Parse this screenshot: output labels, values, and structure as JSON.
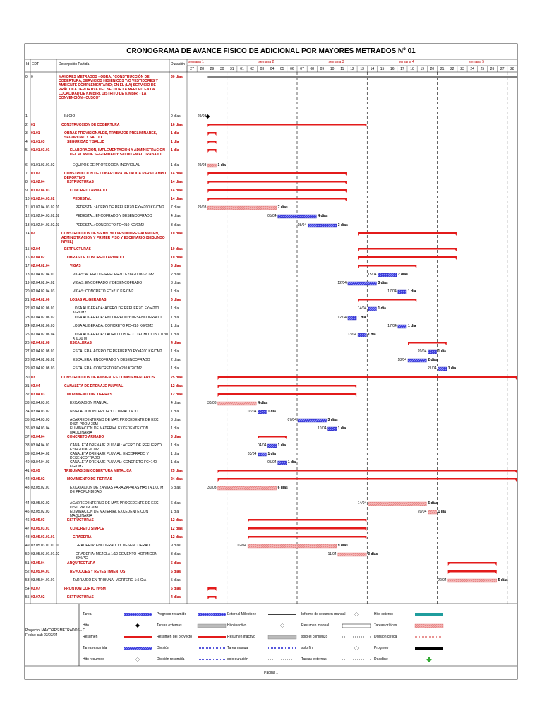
{
  "header": {
    "title": "CRONOGRAMA DE AVANCE FISICO DE ADICIONAL POR MAYORES METRADOS Nº 01",
    "columns": [
      "Id",
      "EDT",
      "Descripción Partida",
      "Duración"
    ]
  },
  "weeks": [
    "semana 1",
    "semana 2",
    "semana 3",
    "semana 4",
    "semana 5"
  ],
  "days": [
    "27",
    "28",
    "29",
    "30",
    "31",
    "01",
    "02",
    "03",
    "04",
    "05",
    "06",
    "07",
    "08",
    "09",
    "10",
    "11",
    "12",
    "13",
    "14",
    "15",
    "16",
    "17",
    "18",
    "19",
    "20",
    "21",
    "22",
    "23",
    "24",
    "25",
    "26",
    "27",
    "28"
  ],
  "rows": [
    {
      "id": 0,
      "edt": "0",
      "name": "MAYORES METRADOS - OBRA: \"CONSTRUCCIÓN DE COBERTURA, SERVICIOS HIGIÉNICOS Y/O VESTIDORES Y AMBIENTE COMPLEMENTARIO; EN EL (LA) SERVICIO DE PRÁCTICA DEPORTIVA DEL SECTOR LA MERCED EN LA LOCALIDAD DE KIMBIRI, DISTRITO DE KIMBIRI - LA CONVENCIÓN - CUSCO\"",
      "duration": "30 días"
    },
    {
      "id": 1,
      "name": "INICIO",
      "duration": "0 días",
      "start_label": "29/03"
    },
    {
      "id": 2,
      "edt": "01",
      "name": "CONSTRUCCION DE COBERTURA",
      "duration": "16 días"
    },
    {
      "id": 3,
      "edt": "01.01",
      "name": "OBRAS PROVISIONALES, TRABAJOS PRELIMINARES, SEGURIDAD Y SALUD",
      "duration": "1 día"
    },
    {
      "id": 4,
      "edt": "01.01.03",
      "name": "SEGURIDAD Y SALUD",
      "duration": "1 día"
    },
    {
      "id": 5,
      "edt": "01.01.03.01",
      "name": "ELABORACION, IMPLEMENTACION Y ADMINISTRACION DEL PLAN DE SEGURIDAD Y SALUD EN EL TRABAJO",
      "duration": "1 día"
    },
    {
      "id": 6,
      "edt": "01.01.03.01.02",
      "name": "EQUIPOS DE PROTECCION INDIVIDUAL",
      "duration": "1 día",
      "start_label": "29/03",
      "end_label": "1 día"
    },
    {
      "id": 7,
      "edt": "01.02",
      "name": "CONSTRUCCION DE COBERTURA METALICA PARA CAMPO DEPORTIVO",
      "duration": "14 días"
    },
    {
      "id": 8,
      "edt": "01.02.04",
      "name": "ESTRUCTURAS",
      "duration": "14 días"
    },
    {
      "id": 9,
      "edt": "01.02.04.03",
      "name": "CONCRETO ARMADO",
      "duration": "14 días"
    },
    {
      "id": 10,
      "edt": "01.02.04.03.02",
      "name": "PEDESTAL",
      "duration": "14 días"
    },
    {
      "id": 11,
      "edt": "01.02.04.03.02.01",
      "name": "PEDESTAL: ACERO DE REFUERZO FY=4200 KG/CM2",
      "duration": "7 días",
      "start_label": "29/03",
      "end_label": "7 días"
    },
    {
      "id": 12,
      "edt": "01.02.04.03.02.02",
      "name": "PEDESTAL: ENCOFRADO Y DESENCOFRADO",
      "duration": "4 días",
      "start_label": "05/04",
      "end_label": "4 días"
    },
    {
      "id": 13,
      "edt": "01.02.04.03.02.03",
      "name": "PEDESTAL: CONCRETO FC=210 KG/CM2",
      "duration": "3 días",
      "start_label": "08/04",
      "end_label": "3 días"
    },
    {
      "id": 14,
      "edt": "02",
      "name": "CONSTRUCCION DE SS.HH. Y/O VESTIDORES ALMACEN, ADMINISTRACION Y PRIMER PISO Y ESCENARIO (SEGUNDO NIVEL)",
      "duration": "10 días"
    },
    {
      "id": 15,
      "edt": "02.04",
      "name": "ESTRUCTURAS",
      "duration": "10 días"
    },
    {
      "id": 16,
      "edt": "02.04.02",
      "name": "OBRAS DE CONCRETO ARMADO",
      "duration": "10 días"
    },
    {
      "id": 17,
      "edt": "02.04.02.04",
      "name": "VIGAS",
      "duration": "6 días"
    },
    {
      "id": 18,
      "edt": "02.04.02.04.01",
      "name": "VIGAS: ACERO DE REFUERZO FY=4200 KG/CM2",
      "duration": "2 días",
      "start_label": "15/04",
      "end_label": "2 días"
    },
    {
      "id": 19,
      "edt": "02.04.02.04.02",
      "name": "VIGAS: ENCOFRADO Y DESENCOFRADO",
      "duration": "3 días",
      "start_label": "12/04",
      "end_label": "3 días"
    },
    {
      "id": 20,
      "edt": "02.04.02.04.03",
      "name": "VIGAS: CONCRETO FC=210 KG/CM2",
      "duration": "1 día",
      "start_label": "17/04",
      "end_label": "1 día"
    },
    {
      "id": 21,
      "edt": "02.04.02.06",
      "name": "LOSAS ALIGERADAS",
      "duration": "6 días"
    },
    {
      "id": 22,
      "edt": "02.04.02.06.01",
      "name": "LOSA ALIGERADA: ACERO DE REFUERZO FY=4200 KG/CM2",
      "duration": "1 día",
      "start_label": "14/04",
      "end_label": "1 día"
    },
    {
      "id": 23,
      "edt": "02.04.02.06.02",
      "name": "LOSA ALIGERADA: ENCOFRADO Y DESENCOFRADO",
      "duration": "1 día",
      "start_label": "12/04",
      "end_label": "1 día"
    },
    {
      "id": 24,
      "edt": "02.04.02.06.03",
      "name": "LOSA ALIGERADA: CONCRETO FC=210 KG/CM2",
      "duration": "1 día",
      "start_label": "17/04",
      "end_label": "1 día"
    },
    {
      "id": 25,
      "edt": "02.04.02.06.04",
      "name": "LOSA ALIGERADA: LADRILLO HUECO TECHO 0.15 X 0.30 X 0.30 M",
      "duration": "1 día",
      "start_label": "13/04",
      "end_label": "1 día"
    },
    {
      "id": 26,
      "edt": "02.04.02.08",
      "name": "ESCALERAS",
      "duration": "4 días"
    },
    {
      "id": 27,
      "edt": "02.04.02.08.01",
      "name": "ESCALERA: ACERO DE REFUERZO FY=4200 KG/CM2",
      "duration": "1 día",
      "start_label": "20/04",
      "end_label": "1 día"
    },
    {
      "id": 28,
      "edt": "02.04.02.08.02",
      "name": "ESCALERA: ENCOFRADO Y DESENCOFRADO",
      "duration": "2 días",
      "start_label": "18/04",
      "end_label": "2 días"
    },
    {
      "id": 29,
      "edt": "02.04.02.08.03",
      "name": "ESCALERA: CONCRETO FC=210 KG/CM2",
      "duration": "1 día",
      "start_label": "21/04",
      "end_label": "1 día"
    },
    {
      "id": 30,
      "edt": "03",
      "name": "CONSTRUCCION DE AMBIENTES COMPLEMENTARIOS",
      "duration": "25 días"
    },
    {
      "id": 31,
      "edt": "03.04",
      "name": "CANALETA DE DRENAJE PLUVIAL",
      "duration": "12 días"
    },
    {
      "id": 32,
      "edt": "03.04.03",
      "name": "MOVIMIENTO DE TIERRAS",
      "duration": "12 días"
    },
    {
      "id": 33,
      "edt": "03.04.03.01",
      "name": "EXCAVACION MANUAL",
      "duration": "4 días",
      "start_label": "30/03",
      "end_label": "4 días"
    },
    {
      "id": 34,
      "edt": "03.04.03.02",
      "name": "NIVELACION INTERIOR Y COMPACTADO",
      "duration": "1 día",
      "start_label": "03/04",
      "end_label": "1 día"
    },
    {
      "id": 35,
      "edt": "03.04.03.03",
      "name": "ACARREO INTERNO DE MAT. PROCEDENTE DE EXC. DIST. PROM 30M",
      "duration": "3 días",
      "start_label": "07/04",
      "end_label": "3 días"
    },
    {
      "id": 36,
      "edt": "03.04.03.04",
      "name": "ELIMINACION DE MATERIAL EXCEDENTE CON MAQUINARIA",
      "duration": "1 día",
      "start_label": "10/04",
      "end_label": "1 día"
    },
    {
      "id": 37,
      "edt": "03.04.04",
      "name": "CONCRETO ARMADO",
      "duration": "3 días"
    },
    {
      "id": 38,
      "edt": "03.04.04.01",
      "name": "CANALETA DRENAJE PLUVIAL: ACERO DE REFUERZO FY=4200 KG/CM2",
      "duration": "1 día",
      "start_label": "04/04",
      "end_label": "1 día"
    },
    {
      "id": 39,
      "edt": "03.04.04.02",
      "name": "CANALETA DRENAJE PLUVIAL: ENCOFRADO Y DESENCOFRADO",
      "duration": "1 día",
      "start_label": "03/04",
      "end_label": "1 día"
    },
    {
      "id": 40,
      "edt": "03.04.04.03",
      "name": "CANALETA DRENAJE PLUVIAL: CONCRETO FC=140 KG/CM2",
      "duration": "1 día",
      "start_label": "05/04",
      "end_label": "1 día"
    },
    {
      "id": 41,
      "edt": "03.05",
      "name": "TRIBUNAS SIN COBERTURA METALICA",
      "duration": "25 días"
    },
    {
      "id": 42,
      "edt": "03.05.02",
      "name": "MOVIMIENTO DE TIERRAS",
      "duration": "24 días"
    },
    {
      "id": 43,
      "edt": "03.05.02.01",
      "name": "EXCAVACION DE ZANJAS PARA ZAPATAS HASTA 1.00 M DE PROFUNDIDAD",
      "duration": "6 días",
      "start_label": "30/03",
      "end_label": "6 días"
    },
    {
      "id": 44,
      "edt": "03.05.02.02",
      "name": "ACARREO INTERNO DE MAT. PROCEDENTE DE EXC. DIST. PROM 30M",
      "duration": "6 días",
      "start_label": "14/04",
      "end_label": "6 días"
    },
    {
      "id": 45,
      "edt": "03.05.02.03",
      "name": "ELIMINACION DE MATERIAL EXCEDENTE CON MAQUINARIA",
      "duration": "1 día",
      "start_label": "20/04",
      "end_label": "1 día"
    },
    {
      "id": 46,
      "edt": "03.05.03",
      "name": "ESTRUCTURAS",
      "duration": "12 días"
    },
    {
      "id": 47,
      "edt": "03.05.03.01",
      "name": "CONCRETO SIMPLE",
      "duration": "12 días"
    },
    {
      "id": 48,
      "edt": "03.05.03.01.01",
      "name": "GRADERIA",
      "duration": "12 días"
    },
    {
      "id": 49,
      "edt": "03.05.03.01.01.01",
      "name": "GRADERIA: ENCOFRADO Y DESENCOFRADO",
      "duration": "9 días",
      "start_label": "02/04",
      "end_label": "9 días"
    },
    {
      "id": 50,
      "edt": "03.05.03.01.01.02",
      "name": "GRADERIA: MEZCLA 1:10 CEMENTO-HORMIGON 30%PG",
      "duration": "3 días",
      "start_label": "11/04",
      "end_label": "3 días"
    },
    {
      "id": 51,
      "edt": "03.05.04",
      "name": "ARQUITECTURA",
      "duration": "5 días"
    },
    {
      "id": 52,
      "edt": "03.05.04.01",
      "name": "REVOQUES Y REVESTIMIENTOS",
      "duration": "5 días"
    },
    {
      "id": 53,
      "edt": "03.05.04.01.01",
      "name": "TARRAJEO EN TRIBUNA, MORTERO 1:5 C:A",
      "duration": "5 días",
      "start_label": "22/04",
      "end_label": "5 días"
    },
    {
      "id": 54,
      "edt": "03.07",
      "name": "FRONTON CORTO H=5M",
      "duration": "5 días"
    },
    {
      "id": 55,
      "edt": "03.07.02",
      "name": "ESTRUCTURAS",
      "duration": "4 días"
    }
  ],
  "legend": [
    [
      "Tarea",
      "Hito",
      "Resumen",
      "Tarea resumida",
      "Hito resumido"
    ],
    [
      "Progreso resumido",
      "Tareas externas",
      "Resumen del proyecto",
      "División",
      "División resumida"
    ],
    [
      "External Milestone",
      "Hito inactivo",
      "Resumen inactivo",
      "Tarea manual",
      "solo duración"
    ],
    [
      "Informe de resumen manual",
      "Resumen manual",
      "solo el comienzo",
      "solo fin",
      "Tareas externas"
    ],
    [
      "Hito externo",
      "Tareas críticas",
      "División crítica",
      "Progreso",
      "Deadline"
    ]
  ],
  "footer": {
    "project": "Proyecto: MAYORES METRADOS - O",
    "date": "Fecha: sáb 23/03/24",
    "page": "Página 1"
  }
}
